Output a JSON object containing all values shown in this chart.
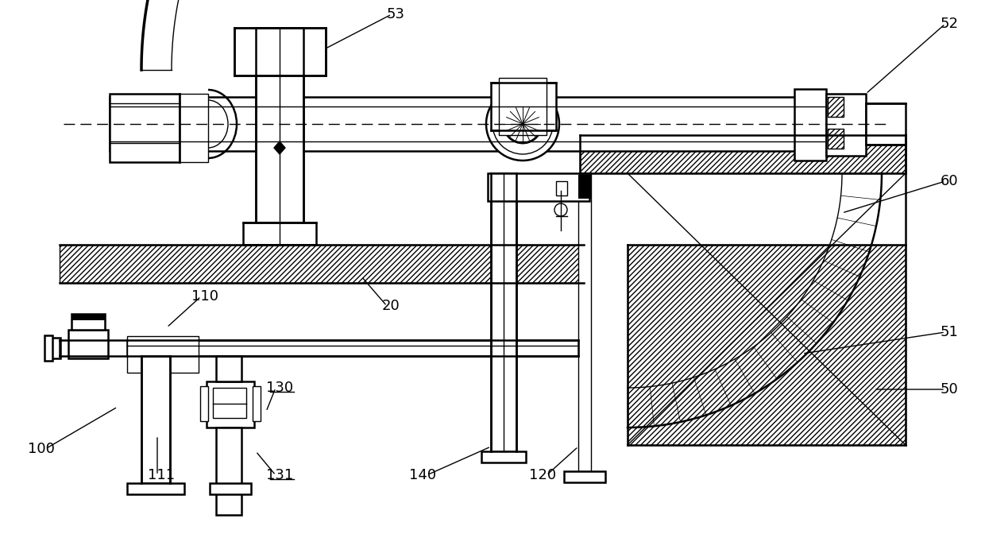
{
  "bg_color": "#ffffff",
  "line_color": "#000000",
  "lw_thin": 1.0,
  "lw_med": 1.8,
  "lw_thick": 2.5,
  "labels_info": [
    [
      "52",
      1195,
      30,
      1090,
      118
    ],
    [
      "53",
      498,
      18,
      408,
      62
    ],
    [
      "60",
      1195,
      228,
      1060,
      268
    ],
    [
      "50",
      1195,
      490,
      1100,
      490
    ],
    [
      "51",
      1195,
      418,
      1010,
      445
    ],
    [
      "20",
      492,
      385,
      455,
      348
    ],
    [
      "110",
      258,
      373,
      210,
      412
    ],
    [
      "111",
      203,
      598,
      198,
      548
    ],
    [
      "130",
      352,
      488,
      335,
      518
    ],
    [
      "131",
      352,
      598,
      322,
      568
    ],
    [
      "140",
      532,
      598,
      618,
      562
    ],
    [
      "120",
      683,
      598,
      728,
      562
    ],
    [
      "100",
      52,
      565,
      148,
      512
    ]
  ]
}
